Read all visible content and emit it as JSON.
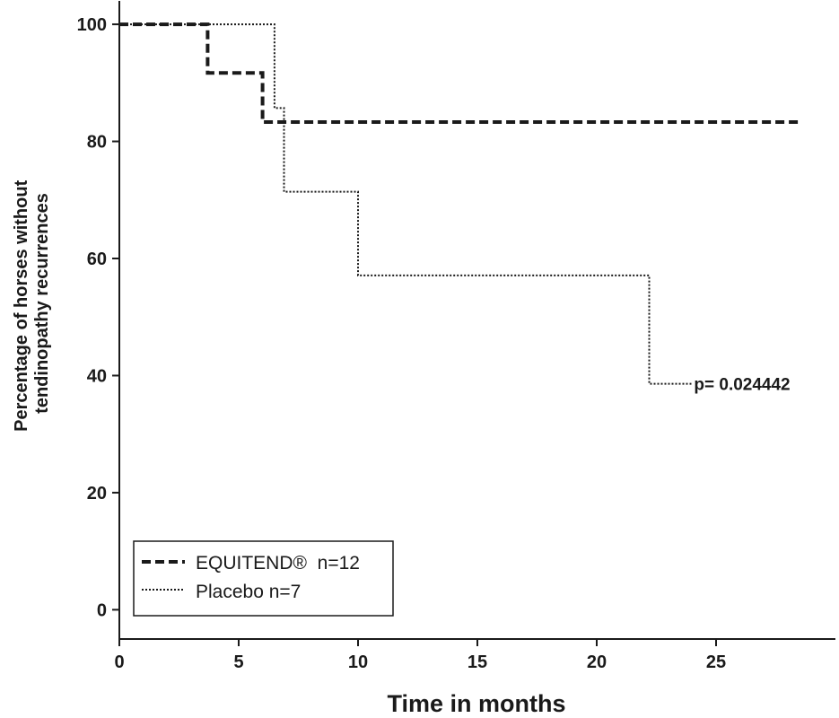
{
  "chart_data": {
    "type": "line",
    "xlabel": "Time in months",
    "ylabel_lines": [
      "Percentage of horses without",
      "tendinopathy recurrences"
    ],
    "xlim": [
      0,
      30
    ],
    "ylim": [
      -5,
      104
    ],
    "xticks": [
      0,
      5,
      10,
      15,
      20,
      25
    ],
    "yticks": [
      0,
      20,
      40,
      60,
      80,
      100
    ],
    "grid": false,
    "legend_position": "bottom-left",
    "series": [
      {
        "name": "EQUITEND®  n=12",
        "style": "dashed",
        "color": "#1a1a1a",
        "x": [
          0,
          3.7,
          3.7,
          6,
          6,
          28.6
        ],
        "y": [
          100,
          100,
          91.7,
          91.7,
          83.3,
          83.3
        ]
      },
      {
        "name": "Placebo n=7",
        "style": "dotted",
        "color": "#1a1a1a",
        "x": [
          0,
          6.5,
          6.5,
          6.9,
          6.9,
          10,
          10,
          22.2,
          22.2,
          24
        ],
        "y": [
          100,
          100,
          85.7,
          85.7,
          71.4,
          71.4,
          57.1,
          57.1,
          38.6,
          38.6
        ]
      }
    ],
    "annotations": [
      {
        "text": "p= 0.024442",
        "x": 24,
        "y": 38.6
      }
    ]
  }
}
